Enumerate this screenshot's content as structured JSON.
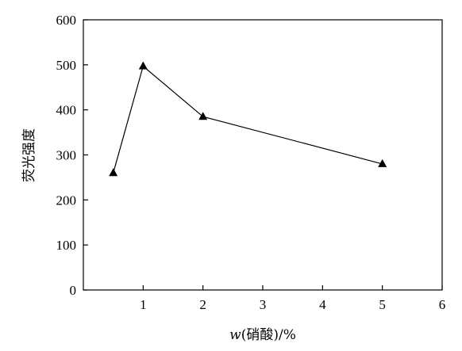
{
  "chart_data": {
    "type": "line",
    "x": [
      0.5,
      1,
      2,
      5
    ],
    "series": [
      {
        "values": [
          260,
          497,
          385,
          280
        ],
        "marker": "triangle",
        "color": "#000000"
      }
    ],
    "xlim": [
      0,
      6
    ],
    "ylim": [
      0,
      600
    ],
    "xticks": [
      1,
      2,
      3,
      4,
      5,
      6
    ],
    "yticks": [
      0,
      100,
      200,
      300,
      400,
      500,
      600
    ],
    "xlabel_prefix": "w",
    "xlabel_rest": "(硝酸)/%",
    "ylabel": "荧光强度",
    "grid": false
  }
}
